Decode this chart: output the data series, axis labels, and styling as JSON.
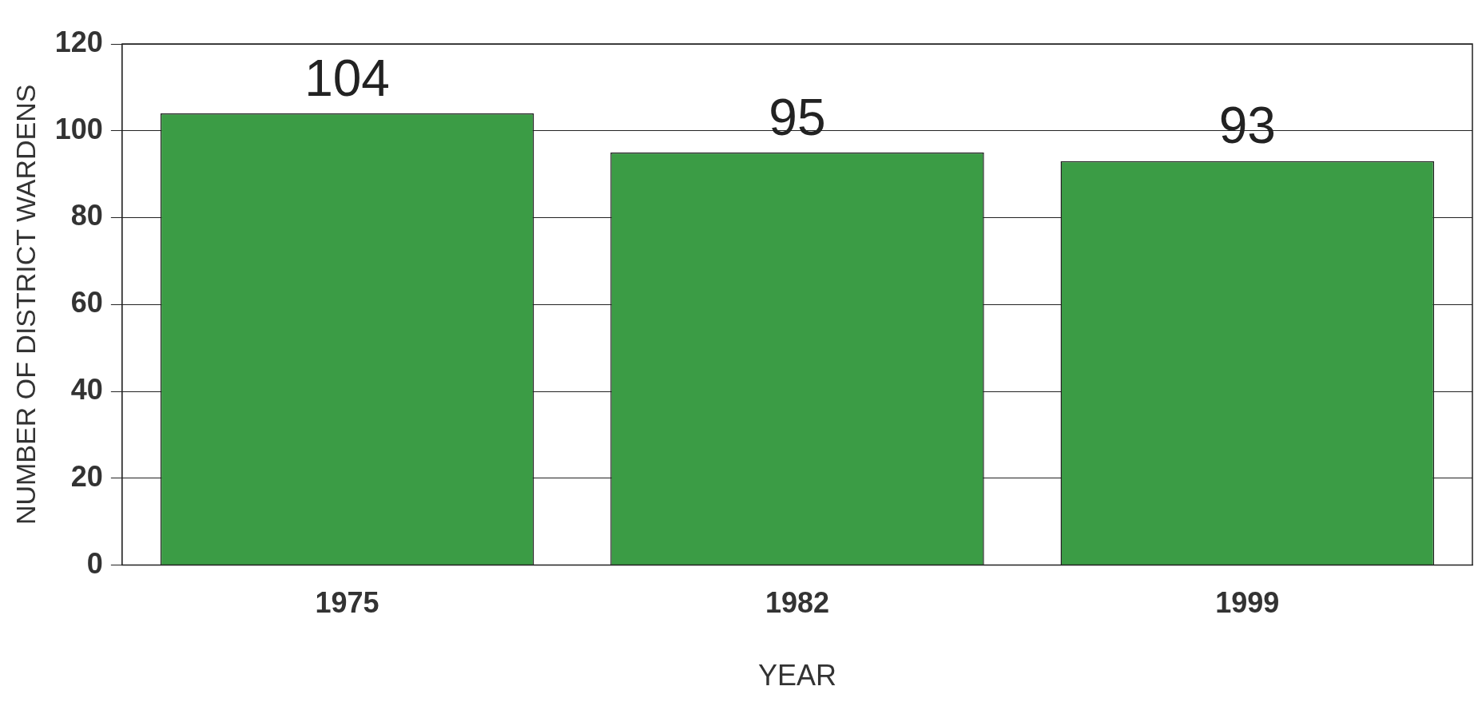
{
  "chart_data": {
    "type": "bar",
    "xlabel": "YEAR",
    "ylabel": "NUMBER OF DISTRICT WARDENS",
    "categories": [
      "1975",
      "1982",
      "1999"
    ],
    "values": [
      104,
      95,
      93
    ],
    "color": "#3b9c45",
    "ylim": [
      0,
      120
    ],
    "yticks": [
      0,
      20,
      40,
      60,
      80,
      100,
      120
    ],
    "grid": "y",
    "data_labels": true,
    "legend": false
  }
}
